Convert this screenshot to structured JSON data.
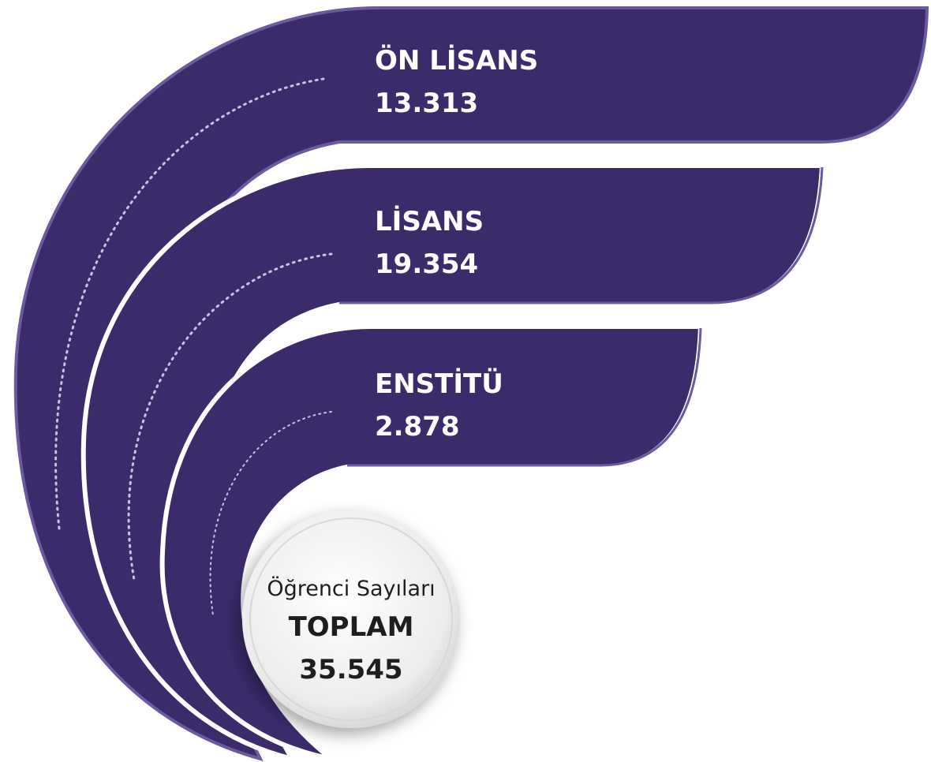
{
  "items": [
    {
      "label": "ÖN LİSANS",
      "value": "13.313"
    },
    {
      "label": "LİSANS",
      "value": "19.354"
    },
    {
      "label": "ENSTİTÜ",
      "value": "2.878"
    }
  ],
  "total": {
    "caption": "Öğrenci Sayıları",
    "label": "TOPLAM",
    "value": "35.545"
  }
}
